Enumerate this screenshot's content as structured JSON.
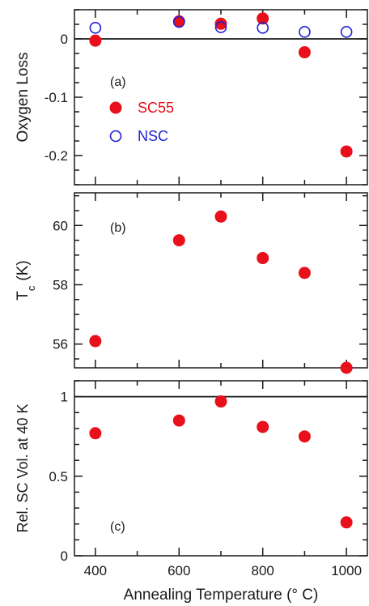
{
  "chart_data": [
    {
      "type": "scatter",
      "panel_label": "(a)",
      "ylabel": "Oxygen Loss",
      "xlim": [
        350,
        1050
      ],
      "ylim": [
        -0.25,
        0.05
      ],
      "yticks": [
        0,
        -0.1,
        -0.2
      ],
      "ytick_labels": [
        "0",
        "-0.1",
        "-0.2"
      ],
      "reference_line": 0,
      "legend": {
        "placement": "left-middle"
      },
      "series": [
        {
          "name": "SC55",
          "color": "#e8101a",
          "marker": "filled-circle",
          "x": [
            400,
            600,
            700,
            800,
            900,
            1000
          ],
          "y": [
            -0.003,
            0.03,
            0.026,
            0.035,
            -0.023,
            -0.193
          ]
        },
        {
          "name": "NSC",
          "color": "#1f1fd6",
          "marker": "open-circle",
          "x": [
            400,
            600,
            700,
            800,
            900,
            1000
          ],
          "y": [
            0.019,
            0.029,
            0.02,
            0.019,
            0.012,
            0.012
          ]
        }
      ]
    },
    {
      "type": "scatter",
      "panel_label": "(b)",
      "ylabel": "T",
      "ylabel_sub": "c",
      "ylabel_unit": "(K)",
      "xlim": [
        350,
        1050
      ],
      "ylim": [
        55.2,
        61.1
      ],
      "yticks": [
        56,
        58,
        60
      ],
      "ytick_labels": [
        "56",
        "58",
        "60"
      ],
      "series": [
        {
          "color": "#e8101a",
          "marker": "filled-circle",
          "x": [
            400,
            600,
            700,
            800,
            900,
            1000
          ],
          "y": [
            56.1,
            59.5,
            60.3,
            58.9,
            58.4,
            55.2
          ]
        }
      ]
    },
    {
      "type": "scatter",
      "panel_label": "(c)",
      "ylabel": "Rel. SC Vol. at 40 K",
      "xlabel": "Annealing Temperature  (° C)",
      "xlim": [
        350,
        1050
      ],
      "xticks": [
        400,
        600,
        800,
        1000
      ],
      "xtick_labels": [
        "400",
        "600",
        "800",
        "1000"
      ],
      "ylim": [
        0,
        1.1
      ],
      "yticks": [
        0,
        0.5,
        1
      ],
      "ytick_labels": [
        "0",
        "0.5",
        "1"
      ],
      "reference_line": 1,
      "series": [
        {
          "color": "#e8101a",
          "marker": "filled-circle",
          "x": [
            400,
            600,
            700,
            800,
            900,
            1000
          ],
          "y": [
            0.77,
            0.85,
            0.97,
            0.81,
            0.75,
            0.21
          ]
        }
      ]
    }
  ]
}
